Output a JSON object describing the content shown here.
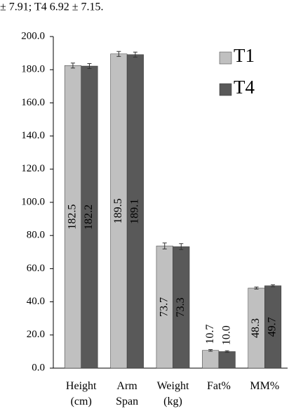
{
  "chart_data": {
    "type": "bar",
    "annotation": "± 7.91; T4 6.92 ± 7.15.",
    "categories": [
      "Height (cm)",
      "Arm Span",
      "Weight (kg)",
      "Fat%",
      "MM%"
    ],
    "series": [
      {
        "name": "T1",
        "color": "#c0c0c0",
        "label_color": "#000000",
        "values": [
          182.5,
          189.5,
          73.7,
          10.7,
          48.3
        ],
        "value_labels": [
          "182.5",
          "189.5",
          "73.7",
          "10.7",
          "48.3"
        ],
        "errors": [
          1.5,
          1.5,
          1.8,
          0.5,
          0.6
        ]
      },
      {
        "name": "T4",
        "color": "#595959",
        "label_color": "#ffffff",
        "values": [
          182.2,
          189.1,
          73.3,
          10.0,
          49.7
        ],
        "value_labels": [
          "182.2",
          "189.1",
          "73.3",
          "10.0",
          "49.7"
        ],
        "errors": [
          1.5,
          1.5,
          1.8,
          0.5,
          0.6
        ]
      }
    ],
    "ylim": [
      0,
      200
    ],
    "yticks": [
      {
        "value": 0,
        "label": "0.0"
      },
      {
        "value": 20,
        "label": "20.0"
      },
      {
        "value": 40,
        "label": "40.0"
      },
      {
        "value": 60,
        "label": "60.0"
      },
      {
        "value": 80,
        "label": "80.0"
      },
      {
        "value": 100,
        "label": "100.0"
      },
      {
        "value": 120,
        "label": "120.0"
      },
      {
        "value": 140,
        "label": "140.0"
      },
      {
        "value": 160,
        "label": "160.0"
      },
      {
        "value": 180,
        "label": "180.0"
      },
      {
        "value": 200,
        "label": "200.0"
      }
    ],
    "legend": "top-right"
  }
}
